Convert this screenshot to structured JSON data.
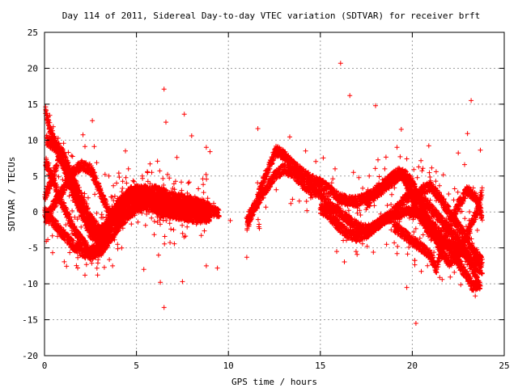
{
  "chart_data": {
    "type": "scatter",
    "title": "Day 114 of 2011, Sidereal Day-to-day VTEC variation (SDTVAR) for receiver brft",
    "xlabel": "GPS time / hours",
    "ylabel": "SDTVAR / TECUs",
    "xlim": [
      0,
      25
    ],
    "ylim": [
      -20,
      25
    ],
    "xticks": [
      0,
      5,
      10,
      15,
      20,
      25
    ],
    "yticks": [
      -20,
      -15,
      -10,
      -5,
      0,
      5,
      10,
      15,
      20,
      25
    ],
    "grid": true,
    "marker": "+",
    "color": "#ff0000",
    "curves": [
      [
        [
          0.05,
          14
        ],
        [
          0.2,
          12.5
        ],
        [
          0.5,
          10
        ],
        [
          1,
          8
        ],
        [
          1.5,
          5
        ],
        [
          2,
          2
        ],
        [
          2.5,
          -1
        ],
        [
          3,
          -2.5
        ],
        [
          3.5,
          -2
        ],
        [
          4,
          0
        ],
        [
          4.5,
          2
        ],
        [
          5,
          3
        ],
        [
          5.5,
          3
        ],
        [
          6,
          2
        ],
        [
          6.5,
          1
        ],
        [
          7,
          0.5
        ],
        [
          7.5,
          0.5
        ],
        [
          8,
          0.5
        ],
        [
          8.5,
          0.5
        ],
        [
          9,
          0
        ],
        [
          9.5,
          0
        ]
      ],
      [
        [
          0.05,
          7
        ],
        [
          0.5,
          4
        ],
        [
          1,
          1
        ],
        [
          1.5,
          -2
        ],
        [
          2,
          -4
        ],
        [
          2.5,
          -5.5
        ],
        [
          3,
          -5
        ],
        [
          3.5,
          -2.5
        ],
        [
          4,
          0
        ],
        [
          4.5,
          1.5
        ],
        [
          5,
          2
        ],
        [
          5.5,
          1.5
        ],
        [
          6,
          1
        ],
        [
          7,
          0
        ],
        [
          8,
          0
        ],
        [
          9,
          -1
        ]
      ],
      [
        [
          0,
          0
        ],
        [
          0.5,
          -1.5
        ],
        [
          1,
          -3
        ],
        [
          1.5,
          -4.5
        ],
        [
          2,
          -5.5
        ],
        [
          2.5,
          -6
        ],
        [
          3,
          -5.5
        ],
        [
          3.5,
          -4
        ],
        [
          4,
          -2
        ],
        [
          4.5,
          -0.5
        ],
        [
          5,
          0.5
        ],
        [
          5.5,
          1
        ],
        [
          6,
          0.5
        ],
        [
          6.5,
          0
        ],
        [
          7.5,
          -0.5
        ],
        [
          8.5,
          -1
        ]
      ],
      [
        [
          0,
          2
        ],
        [
          0.5,
          5
        ],
        [
          0.8,
          8
        ],
        [
          1.1,
          6
        ],
        [
          1.5,
          3
        ],
        [
          2,
          0
        ],
        [
          2.5,
          -3
        ],
        [
          3,
          -4
        ],
        [
          3.5,
          -1
        ],
        [
          4,
          1
        ],
        [
          4.5,
          2.5
        ],
        [
          5,
          3
        ],
        [
          5.5,
          2.5
        ],
        [
          6,
          2
        ],
        [
          7,
          1
        ],
        [
          8,
          1
        ],
        [
          9,
          0.5
        ]
      ],
      [
        [
          0.05,
          -1
        ],
        [
          0.5,
          1
        ],
        [
          1,
          3
        ],
        [
          1.5,
          5.5
        ],
        [
          2,
          6.5
        ],
        [
          2.5,
          6
        ],
        [
          3,
          3
        ],
        [
          3.5,
          0
        ],
        [
          4,
          -1
        ],
        [
          4.5,
          0
        ],
        [
          5,
          1
        ],
        [
          6,
          1.5
        ],
        [
          7,
          1
        ],
        [
          8,
          0.5
        ],
        [
          9,
          0.5
        ]
      ],
      [
        [
          0.1,
          10
        ],
        [
          0.6,
          9
        ],
        [
          1,
          7
        ],
        [
          1.5,
          4
        ],
        [
          2,
          1
        ],
        [
          2.5,
          -2
        ],
        [
          3,
          -3
        ],
        [
          3.5,
          -1.5
        ],
        [
          4,
          1
        ],
        [
          5,
          2.5
        ],
        [
          6,
          3
        ],
        [
          7,
          2
        ],
        [
          8,
          1.5
        ],
        [
          9,
          0.5
        ]
      ],
      [
        [
          11,
          -2
        ],
        [
          11.3,
          0
        ],
        [
          11.6,
          2
        ],
        [
          12,
          5
        ],
        [
          12.3,
          7
        ],
        [
          12.6,
          8.5
        ],
        [
          13,
          8
        ],
        [
          13.5,
          6.5
        ],
        [
          14,
          5.5
        ],
        [
          14.5,
          4.5
        ],
        [
          15,
          4
        ],
        [
          15.5,
          3
        ],
        [
          16,
          2
        ],
        [
          16.5,
          1.5
        ],
        [
          17,
          1.5
        ],
        [
          17.5,
          2
        ],
        [
          18,
          3
        ],
        [
          18.5,
          4
        ],
        [
          19,
          5
        ],
        [
          19.3,
          5.5
        ],
        [
          19.6,
          4.5
        ],
        [
          20,
          2
        ],
        [
          20.5,
          -1
        ],
        [
          21,
          -3
        ],
        [
          21.5,
          -4
        ],
        [
          22,
          -4.5
        ],
        [
          22.5,
          -5
        ],
        [
          23,
          -6
        ],
        [
          23.5,
          -7.5
        ],
        [
          23.8,
          -8
        ]
      ],
      [
        [
          11,
          -1
        ],
        [
          11.5,
          1
        ],
        [
          12,
          3
        ],
        [
          12.5,
          5
        ],
        [
          13,
          6
        ],
        [
          13.5,
          5.5
        ],
        [
          14,
          4
        ],
        [
          14.5,
          3
        ],
        [
          15,
          2.5
        ],
        [
          15.5,
          1
        ],
        [
          16,
          0
        ],
        [
          16.5,
          -1
        ],
        [
          17,
          -2
        ],
        [
          17.5,
          -2.5
        ],
        [
          18,
          -2
        ],
        [
          18.5,
          -1
        ],
        [
          19,
          0
        ],
        [
          19.5,
          1.5
        ],
        [
          20,
          2.5
        ],
        [
          20.5,
          2
        ],
        [
          21,
          0.5
        ],
        [
          21.5,
          -1
        ],
        [
          22,
          -2.5
        ],
        [
          22.5,
          -4
        ],
        [
          23,
          -6
        ],
        [
          23.3,
          -8
        ],
        [
          23.6,
          -10
        ]
      ],
      [
        [
          15,
          0.5
        ],
        [
          15.5,
          -0.5
        ],
        [
          16,
          -2
        ],
        [
          16.5,
          -3
        ],
        [
          17,
          -3.5
        ],
        [
          17.5,
          -3
        ],
        [
          18,
          -2
        ],
        [
          18.5,
          -1
        ],
        [
          19,
          -0.5
        ],
        [
          19.5,
          0
        ],
        [
          20,
          0
        ],
        [
          20.5,
          -0.5
        ],
        [
          21,
          -1.5
        ],
        [
          21.5,
          -3
        ],
        [
          22,
          -5
        ],
        [
          22.5,
          -7
        ],
        [
          23,
          -9
        ],
        [
          23.3,
          -10.5
        ],
        [
          23.7,
          -10
        ]
      ],
      [
        [
          17.5,
          1
        ],
        [
          18,
          2.5
        ],
        [
          18.5,
          3.5
        ],
        [
          19,
          4.5
        ],
        [
          19.5,
          5.5
        ],
        [
          20,
          4
        ],
        [
          20.5,
          1
        ],
        [
          21,
          -2
        ],
        [
          21.5,
          -5
        ],
        [
          22,
          -7
        ],
        [
          22.5,
          -6
        ],
        [
          23,
          -3
        ],
        [
          23.5,
          0
        ],
        [
          23.8,
          3
        ]
      ],
      [
        [
          19,
          -2
        ],
        [
          19.5,
          -3
        ],
        [
          20,
          -4
        ],
        [
          20.5,
          -5
        ],
        [
          21,
          -6
        ],
        [
          21.3,
          -8
        ],
        [
          21.6,
          -5
        ],
        [
          22,
          -2
        ],
        [
          22.5,
          1
        ],
        [
          23,
          3
        ],
        [
          23.5,
          2
        ],
        [
          23.8,
          -1
        ]
      ],
      [
        [
          20,
          1
        ],
        [
          20.5,
          3
        ],
        [
          21,
          3.5
        ],
        [
          21.5,
          2
        ],
        [
          22,
          0
        ],
        [
          22.5,
          -2
        ],
        [
          23,
          -4
        ],
        [
          23.5,
          -6
        ],
        [
          23.8,
          -7
        ]
      ]
    ],
    "outliers": [
      [
        16.1,
        20.7
      ],
      [
        6.5,
        17.1
      ],
      [
        16.6,
        16.2
      ],
      [
        23.2,
        15.5
      ],
      [
        18,
        14.8
      ],
      [
        7.6,
        13.6
      ],
      [
        2.6,
        12.7
      ],
      [
        6.6,
        12.5
      ],
      [
        11.6,
        11.6
      ],
      [
        8,
        10.6
      ],
      [
        23,
        10.9
      ],
      [
        19.4,
        11.5
      ],
      [
        6.5,
        -13.3
      ],
      [
        20.2,
        -15.5
      ],
      [
        19.7,
        -10.5
      ],
      [
        6.3,
        -9.8
      ],
      [
        7.5,
        -9.7
      ],
      [
        2.2,
        -8.8
      ],
      [
        8.8,
        -7.5
      ],
      [
        17,
        -5.9
      ],
      [
        11,
        -6.3
      ],
      [
        9.4,
        -7.8
      ],
      [
        3.7,
        -7.5
      ],
      [
        5.4,
        -8
      ],
      [
        6.2,
        -6
      ],
      [
        4.2,
        -5
      ],
      [
        1.5,
        -3
      ],
      [
        9,
        8.4
      ],
      [
        8.8,
        9
      ],
      [
        7.2,
        7.6
      ],
      [
        4.4,
        8.5
      ],
      [
        3.5,
        5
      ],
      [
        2.3,
        5.5
      ],
      [
        20.9,
        9.2
      ],
      [
        21.3,
        5.6
      ],
      [
        22.5,
        8.2
      ],
      [
        23.7,
        8.6
      ],
      [
        14.2,
        8.5
      ],
      [
        15.8,
        6
      ],
      [
        16.8,
        5.5
      ],
      [
        17.3,
        3.3
      ],
      [
        18.6,
        -4.5
      ],
      [
        19.2,
        -4.8
      ],
      [
        10.1,
        -1.2
      ],
      [
        9.2,
        1.2
      ]
    ],
    "gaps": [
      [
        9.5,
        11.0
      ]
    ]
  }
}
